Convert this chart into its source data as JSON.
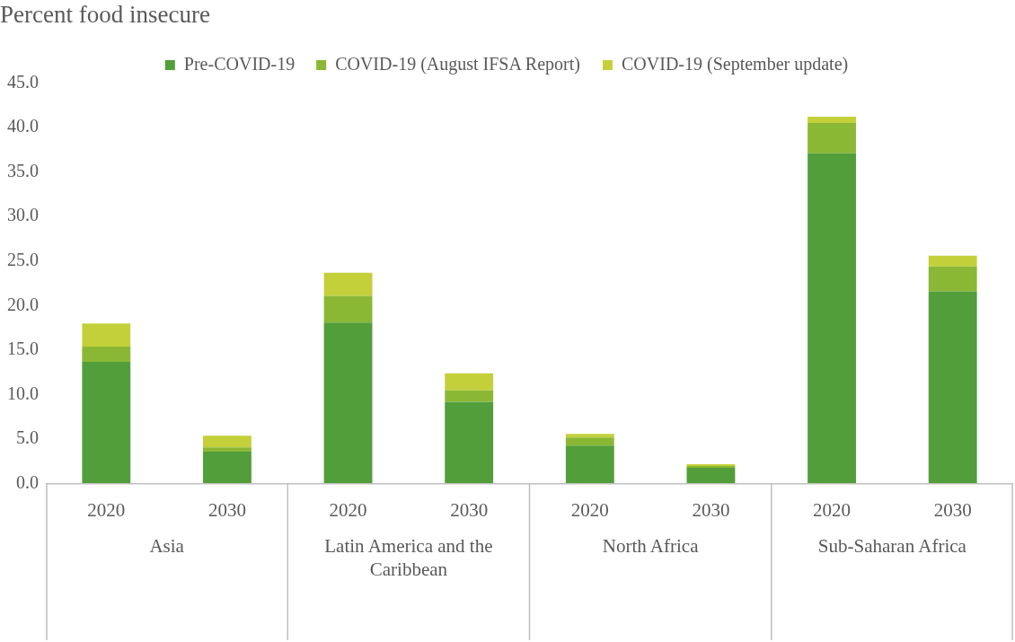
{
  "chart_data": {
    "type": "bar",
    "ylabel": "Percent food insecure",
    "stacked": true,
    "legend": "top",
    "grid": false,
    "categories": [
      "2020",
      "2030",
      "2020",
      "2030",
      "2020",
      "2030",
      "2020",
      "2030"
    ],
    "annotations": [
      "Asia",
      "Latin America and the Caribbean",
      "North Africa",
      "Sub-Saharan Africa"
    ],
    "ylim": [
      0,
      45
    ],
    "yticks": [
      {
        "value": 0,
        "label": "0.0"
      },
      {
        "value": 5,
        "label": "5.0"
      },
      {
        "value": 10,
        "label": "10.0"
      },
      {
        "value": 15,
        "label": "15.0"
      },
      {
        "value": 20,
        "label": "20.0"
      },
      {
        "value": 25,
        "label": "25.0"
      },
      {
        "value": 30,
        "label": "30.0"
      },
      {
        "value": 35,
        "label": "35.0"
      },
      {
        "value": 40,
        "label": "40.0"
      },
      {
        "value": 45,
        "label": "45.0"
      }
    ],
    "series": [
      {
        "name": "Pre-COVID-19",
        "color": "#529e3a",
        "values": [
          13.7,
          3.6,
          18.1,
          9.2,
          4.3,
          1.8,
          37.1,
          21.6
        ]
      },
      {
        "name": "COVID-19 (August IFSA Report)",
        "color": "#8bb834",
        "values": [
          1.7,
          0.5,
          3.0,
          1.3,
          0.9,
          0.2,
          3.4,
          2.8
        ]
      },
      {
        "name": "COVID-19 (September update)",
        "color": "#c3d03a",
        "values": [
          2.6,
          1.3,
          2.6,
          1.9,
          0.4,
          0.2,
          0.7,
          1.2
        ]
      }
    ]
  }
}
